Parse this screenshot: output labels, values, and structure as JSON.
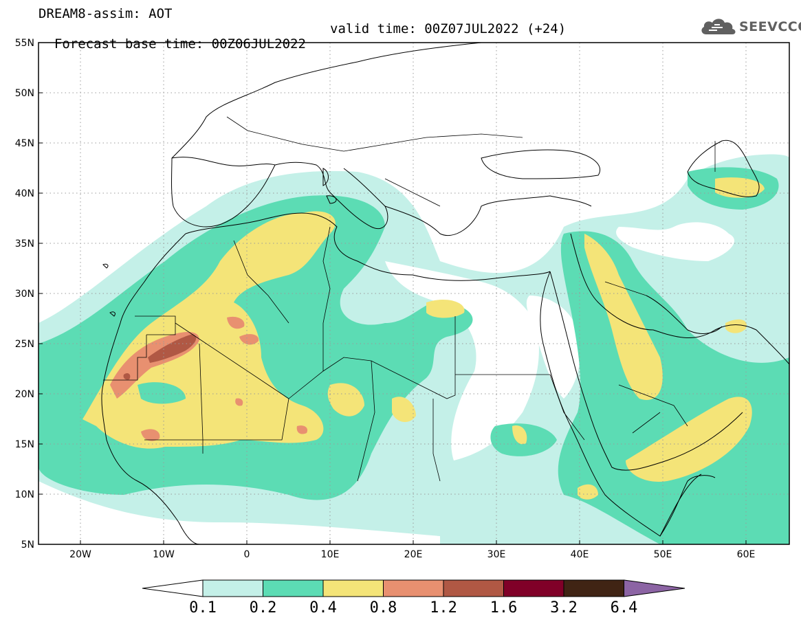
{
  "title_line1": "DREAM8-assim: AOT",
  "title_line2_base": "Forecast base time: 00Z06JUL2022",
  "title_line2_valid": "valid time: 00Z07JUL2022 (+24)",
  "logo": {
    "text": "SEEVCCC",
    "icon": "cloud-logo-icon",
    "color": "#606060"
  },
  "map": {
    "lon_range": [
      -25,
      65
    ],
    "lat_range": [
      5,
      55
    ],
    "lat_labels": [
      "55N",
      "50N",
      "45N",
      "40N",
      "35N",
      "30N",
      "25N",
      "20N",
      "15N",
      "10N",
      "5N"
    ],
    "lon_labels": [
      "20W",
      "10W",
      "0",
      "10E",
      "20E",
      "30E",
      "40E",
      "50E",
      "60E"
    ]
  },
  "colorbar": {
    "levels": [
      "0.1",
      "0.2",
      "0.4",
      "0.8",
      "1.2",
      "1.6",
      "3.2",
      "6.4"
    ],
    "colors": [
      "#c4f0e8",
      "#5cdcb4",
      "#f4e478",
      "#e89070",
      "#b05844",
      "#800028",
      "#402414",
      "#8c64a4"
    ],
    "under_color": "#ffffff",
    "over_color": "#8c64a4"
  }
}
